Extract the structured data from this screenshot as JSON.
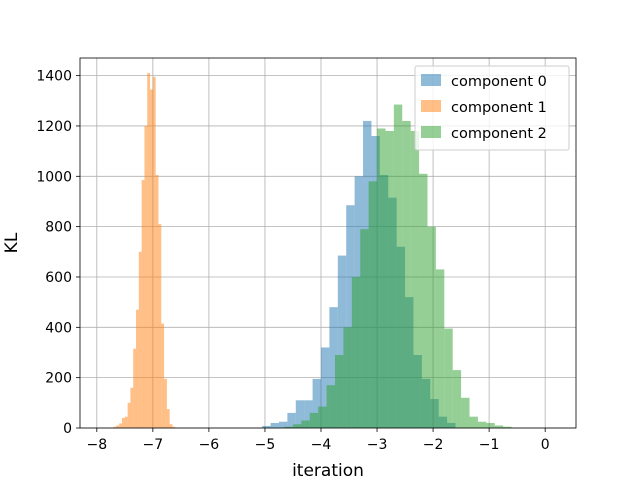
{
  "chart_data": {
    "type": "histogram",
    "xlabel": "iteration",
    "ylabel": "KL",
    "xlim": [
      -8.3,
      0.55
    ],
    "ylim": [
      0,
      1470
    ],
    "xticks": [
      -8,
      -7,
      -6,
      -5,
      -4,
      -3,
      -2,
      -1,
      0
    ],
    "xtick_labels": [
      "−8",
      "−7",
      "−6",
      "−5",
      "−4",
      "−3",
      "−2",
      "−1",
      "0"
    ],
    "yticks": [
      0,
      200,
      400,
      600,
      800,
      1000,
      1200,
      1400
    ],
    "ytick_labels": [
      "0",
      "200",
      "400",
      "600",
      "800",
      "1000",
      "1200",
      "1400"
    ],
    "grid": true,
    "legend_position": "upper right",
    "series": [
      {
        "name": "component 0",
        "color": "#1f77b4",
        "alpha": 0.5,
        "bins": [
          {
            "x0": -5.05,
            "x1": -4.9,
            "v": 8
          },
          {
            "x0": -4.9,
            "x1": -4.75,
            "v": 20
          },
          {
            "x0": -4.75,
            "x1": -4.6,
            "v": 25
          },
          {
            "x0": -4.6,
            "x1": -4.45,
            "v": 60
          },
          {
            "x0": -4.45,
            "x1": -4.3,
            "v": 110
          },
          {
            "x0": -4.3,
            "x1": -4.15,
            "v": 110
          },
          {
            "x0": -4.15,
            "x1": -4.0,
            "v": 195
          },
          {
            "x0": -4.0,
            "x1": -3.85,
            "v": 320
          },
          {
            "x0": -3.85,
            "x1": -3.7,
            "v": 480
          },
          {
            "x0": -3.7,
            "x1": -3.55,
            "v": 685
          },
          {
            "x0": -3.55,
            "x1": -3.4,
            "v": 885
          },
          {
            "x0": -3.4,
            "x1": -3.25,
            "v": 1000
          },
          {
            "x0": -3.25,
            "x1": -3.1,
            "v": 1220
          },
          {
            "x0": -3.1,
            "x1": -2.95,
            "v": 1160
          },
          {
            "x0": -2.95,
            "x1": -2.8,
            "v": 1005
          },
          {
            "x0": -2.8,
            "x1": -2.65,
            "v": 915
          },
          {
            "x0": -2.65,
            "x1": -2.5,
            "v": 720
          },
          {
            "x0": -2.5,
            "x1": -2.35,
            "v": 520
          },
          {
            "x0": -2.35,
            "x1": -2.2,
            "v": 290
          },
          {
            "x0": -2.2,
            "x1": -2.05,
            "v": 195
          },
          {
            "x0": -2.05,
            "x1": -1.9,
            "v": 115
          },
          {
            "x0": -1.9,
            "x1": -1.75,
            "v": 45
          },
          {
            "x0": -1.75,
            "x1": -1.6,
            "v": 20
          }
        ]
      },
      {
        "name": "component 1",
        "color": "#ff7f0e",
        "alpha": 0.5,
        "bins": [
          {
            "x0": -7.7,
            "x1": -7.65,
            "v": 5
          },
          {
            "x0": -7.65,
            "x1": -7.6,
            "v": 10
          },
          {
            "x0": -7.6,
            "x1": -7.55,
            "v": 18
          },
          {
            "x0": -7.55,
            "x1": -7.5,
            "v": 40
          },
          {
            "x0": -7.5,
            "x1": -7.45,
            "v": 45
          },
          {
            "x0": -7.45,
            "x1": -7.4,
            "v": 100
          },
          {
            "x0": -7.4,
            "x1": -7.35,
            "v": 160
          },
          {
            "x0": -7.35,
            "x1": -7.3,
            "v": 315
          },
          {
            "x0": -7.3,
            "x1": -7.25,
            "v": 470
          },
          {
            "x0": -7.25,
            "x1": -7.2,
            "v": 700
          },
          {
            "x0": -7.2,
            "x1": -7.15,
            "v": 985
          },
          {
            "x0": -7.15,
            "x1": -7.1,
            "v": 1200
          },
          {
            "x0": -7.1,
            "x1": -7.05,
            "v": 1410
          },
          {
            "x0": -7.05,
            "x1": -7.0,
            "v": 1345
          },
          {
            "x0": -7.0,
            "x1": -6.95,
            "v": 1395
          },
          {
            "x0": -6.95,
            "x1": -6.9,
            "v": 1005
          },
          {
            "x0": -6.9,
            "x1": -6.85,
            "v": 810
          },
          {
            "x0": -6.85,
            "x1": -6.8,
            "v": 415
          },
          {
            "x0": -6.8,
            "x1": -6.75,
            "v": 195
          },
          {
            "x0": -6.75,
            "x1": -6.7,
            "v": 75
          },
          {
            "x0": -6.7,
            "x1": -6.65,
            "v": 15
          },
          {
            "x0": -6.65,
            "x1": -6.6,
            "v": 5
          }
        ]
      },
      {
        "name": "component 2",
        "color": "#2ca02c",
        "alpha": 0.5,
        "bins": [
          {
            "x0": -4.65,
            "x1": -4.5,
            "v": 5
          },
          {
            "x0": -4.5,
            "x1": -4.35,
            "v": 15
          },
          {
            "x0": -4.35,
            "x1": -4.2,
            "v": 30
          },
          {
            "x0": -4.2,
            "x1": -4.05,
            "v": 60
          },
          {
            "x0": -4.05,
            "x1": -3.9,
            "v": 85
          },
          {
            "x0": -3.9,
            "x1": -3.75,
            "v": 170
          },
          {
            "x0": -3.75,
            "x1": -3.6,
            "v": 290
          },
          {
            "x0": -3.6,
            "x1": -3.45,
            "v": 400
          },
          {
            "x0": -3.45,
            "x1": -3.3,
            "v": 600
          },
          {
            "x0": -3.3,
            "x1": -3.15,
            "v": 790
          },
          {
            "x0": -3.15,
            "x1": -3.0,
            "v": 980
          },
          {
            "x0": -3.0,
            "x1": -2.85,
            "v": 1190
          },
          {
            "x0": -2.85,
            "x1": -2.7,
            "v": 1180
          },
          {
            "x0": -2.7,
            "x1": -2.55,
            "v": 1285
          },
          {
            "x0": -2.55,
            "x1": -2.4,
            "v": 1220
          },
          {
            "x0": -2.4,
            "x1": -2.25,
            "v": 1180
          },
          {
            "x0": -2.25,
            "x1": -2.1,
            "v": 1010
          },
          {
            "x0": -2.1,
            "x1": -1.95,
            "v": 800
          },
          {
            "x0": -1.95,
            "x1": -1.8,
            "v": 630
          },
          {
            "x0": -1.8,
            "x1": -1.65,
            "v": 395
          },
          {
            "x0": -1.65,
            "x1": -1.5,
            "v": 230
          },
          {
            "x0": -1.5,
            "x1": -1.35,
            "v": 120
          },
          {
            "x0": -1.35,
            "x1": -1.2,
            "v": 45
          },
          {
            "x0": -1.2,
            "x1": -1.05,
            "v": 25
          },
          {
            "x0": -1.05,
            "x1": -0.9,
            "v": 20
          },
          {
            "x0": -0.9,
            "x1": -0.75,
            "v": 10
          },
          {
            "x0": -0.75,
            "x1": -0.6,
            "v": 5
          }
        ]
      }
    ]
  }
}
